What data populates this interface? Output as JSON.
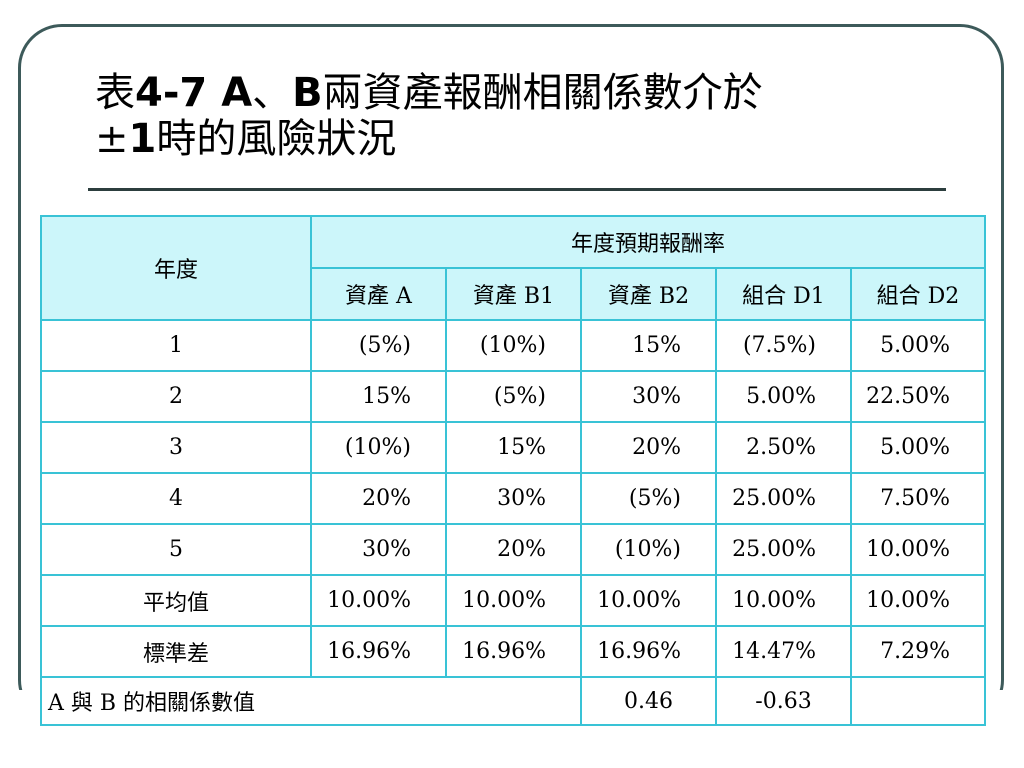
{
  "title_prefix": "表",
  "title_bold_1": "4-7 A",
  "title_sep": "、",
  "title_bold_2": "B",
  "title_rest_1": "兩資產報酬相關係數介於",
  "title_pm": "±",
  "title_bold_3": "1",
  "title_rest_2": "時的風險狀況",
  "table": {
    "year_header": "年度",
    "group_header": "年度預期報酬率",
    "columns": [
      "資產 A",
      "資產 B1",
      "資產 B2",
      "組合 D1",
      "組合 D2"
    ],
    "rows": [
      {
        "label": "1",
        "values": [
          "(5%)",
          "(10%)",
          "15%",
          "(7.5%)",
          "5.00%"
        ]
      },
      {
        "label": "2",
        "values": [
          "15%",
          "(5%)",
          "30%",
          "5.00%",
          "22.50%"
        ]
      },
      {
        "label": "3",
        "values": [
          "(10%)",
          "15%",
          "20%",
          "2.50%",
          "5.00%"
        ]
      },
      {
        "label": "4",
        "values": [
          "20%",
          "30%",
          "(5%)",
          "25.00%",
          "7.50%"
        ]
      },
      {
        "label": "5",
        "values": [
          "30%",
          "20%",
          "(10%)",
          "25.00%",
          "10.00%"
        ]
      },
      {
        "label": "平均值",
        "values": [
          "10.00%",
          "10.00%",
          "10.00%",
          "10.00%",
          "10.00%"
        ]
      },
      {
        "label": "標準差",
        "values": [
          "16.96%",
          "16.96%",
          "16.96%",
          "14.47%",
          "7.29%"
        ]
      }
    ],
    "corr_label": "A 與 B 的相關係數值",
    "corr_b1": "0.46",
    "corr_b2": "-0.63"
  },
  "colors": {
    "frame": "#3d5a5a",
    "grid": "#39c3d6",
    "header_bg": "#ccf6fa"
  }
}
